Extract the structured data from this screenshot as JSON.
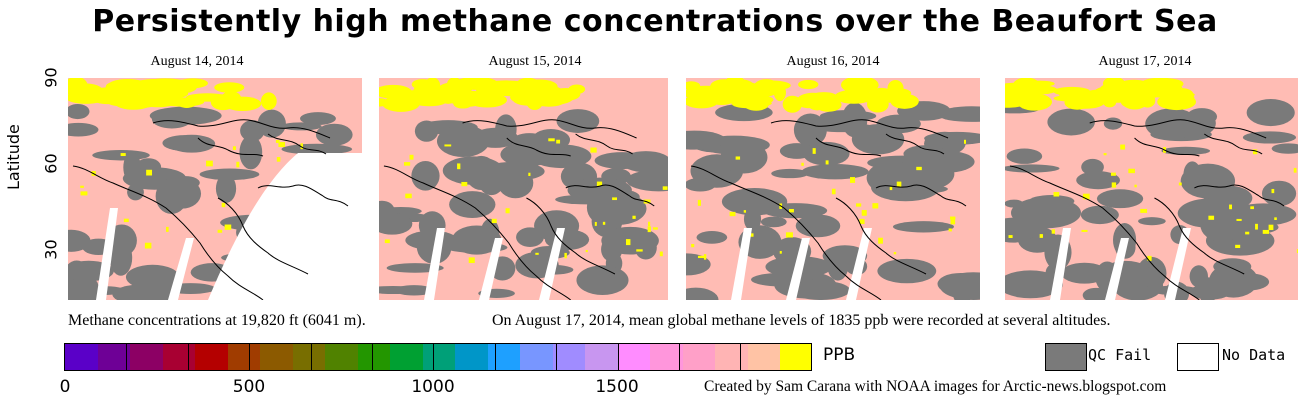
{
  "title": "Persistently high methane concentrations over the Beaufort Sea",
  "panels": [
    {
      "date": "August 14, 2014"
    },
    {
      "date": "August 15, 2014"
    },
    {
      "date": "August 16, 2014"
    },
    {
      "date": "August 17, 2014"
    }
  ],
  "axis": {
    "y_label": "Latitude",
    "y_ticks": [
      "90",
      "60",
      "30"
    ]
  },
  "captions": {
    "left": "Methane concentrations at 19,820 ft (6041 m).",
    "right": "On August 17, 2014, mean global methane levels of 1835 ppb were recorded at several altitudes."
  },
  "colorbar": {
    "ticks": [
      "0",
      "500",
      "1000",
      "1500"
    ],
    "unit": "PPB",
    "colors": [
      "#5a00c8",
      "#6e0096",
      "#8c0064",
      "#a80032",
      "#b40000",
      "#a03c00",
      "#8c5a00",
      "#786e00",
      "#508200",
      "#239600",
      "#00a032",
      "#00a078",
      "#0096c8",
      "#1ea0ff",
      "#7896ff",
      "#a08cff",
      "#c896f0",
      "#ff8cff",
      "#ff96dc",
      "#ffa0c8",
      "#ffb4b4",
      "#ffc3a5",
      "#ffff00"
    ]
  },
  "legend": {
    "qc_fail": "QC Fail",
    "no_data": "No Data",
    "qc_color": "#7a7a7a",
    "nodata_color": "#ffffff"
  },
  "credit": "Created by Sam Carana with NOAA images for Arctic-news.blogspot.com",
  "map_colors": {
    "background": "#ffbcb4",
    "gray": "#7a7a7a",
    "yellow": "#ffff00",
    "coast": "#000000"
  }
}
